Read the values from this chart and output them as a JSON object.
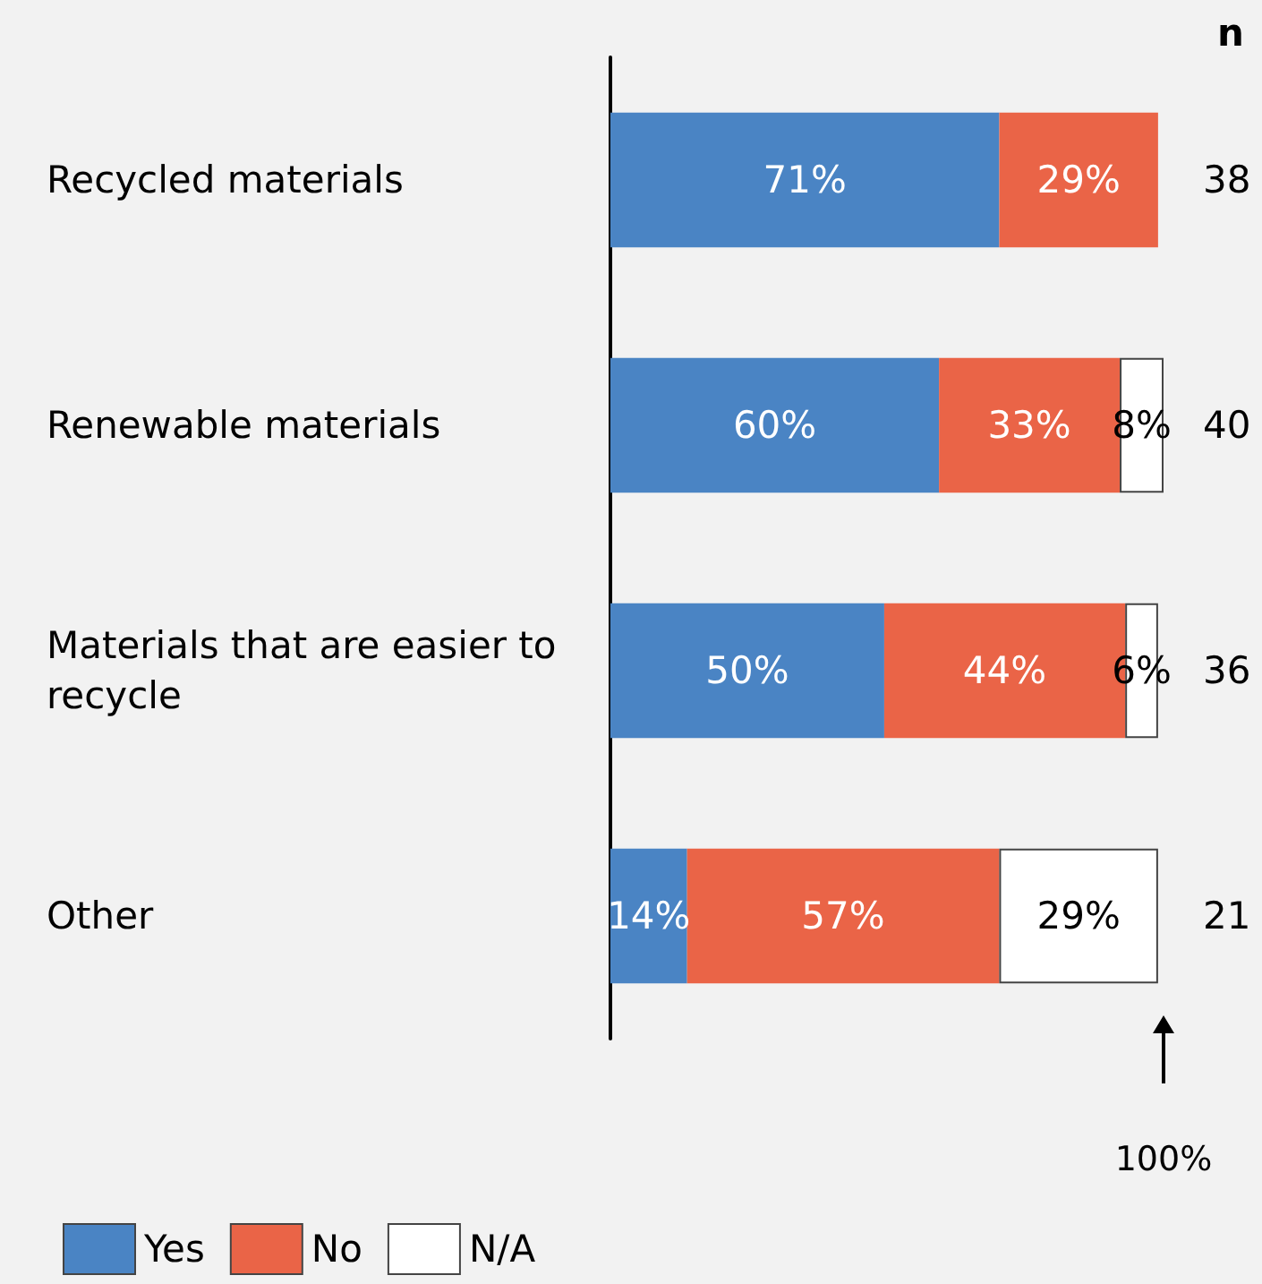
{
  "chart_data": {
    "type": "bar",
    "orientation": "horizontal",
    "stacked": true,
    "categories": [
      "Recycled materials",
      "Renewable materials",
      "Materials that are easier to recycle",
      "Other"
    ],
    "series": [
      {
        "name": "Yes",
        "color": "#4a84c4",
        "values": [
          71,
          60,
          50,
          14
        ],
        "value_labels": [
          "71%",
          "60%",
          "50%",
          "14%"
        ]
      },
      {
        "name": "No",
        "color": "#ea6447",
        "values": [
          29,
          33,
          44,
          57
        ],
        "value_labels": [
          "29%",
          "33%",
          "44%",
          "57%"
        ]
      },
      {
        "name": "N/A",
        "color": "#ffffff",
        "values": [
          null,
          8,
          6,
          29
        ],
        "value_labels": [
          null,
          "8%",
          "6%",
          "29%"
        ]
      }
    ],
    "xlim": [
      0,
      101
    ],
    "tick_labels": "y",
    "grid": false,
    "legend": "bottom left",
    "annotations": [
      "n",
      "38",
      "40",
      "36",
      "21",
      "100%"
    ]
  }
}
